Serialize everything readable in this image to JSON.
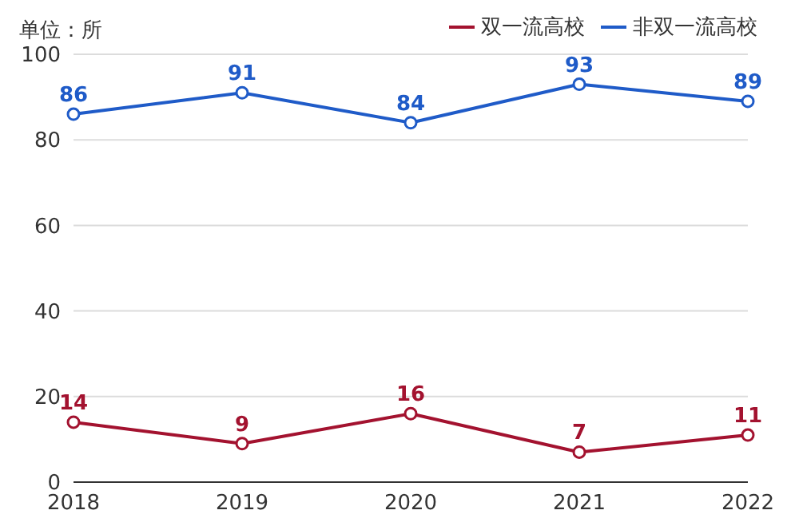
{
  "chart_data": {
    "type": "line",
    "ylabel": "单位：所",
    "categories": [
      "2018",
      "2019",
      "2020",
      "2021",
      "2022"
    ],
    "series": [
      {
        "name": "双一流高校",
        "color": "#a3122f",
        "values": [
          14,
          9,
          16,
          7,
          11
        ]
      },
      {
        "name": "非双一流高校",
        "color": "#1f5bc8",
        "values": [
          86,
          91,
          84,
          93,
          89
        ]
      }
    ],
    "ylim": [
      0,
      100
    ],
    "yticks": [
      0,
      20,
      40,
      60,
      80,
      100
    ],
    "grid": "y",
    "legend": "top right",
    "marker": "circle",
    "line_style": "solid",
    "data_labels": true
  }
}
